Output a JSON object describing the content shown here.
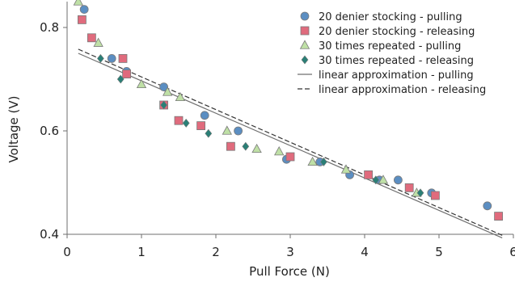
{
  "chart_data": {
    "type": "scatter",
    "xlabel": "Pull Force (N)",
    "ylabel": "Voltage (V)",
    "xlim": [
      0,
      6
    ],
    "ylim": [
      0.4,
      0.85
    ],
    "xticks": [
      "0",
      "1",
      "2",
      "3",
      "4",
      "5",
      "6"
    ],
    "yticks": [
      "0.4",
      "0.6",
      "0.8"
    ],
    "ytick_values": [
      0.4,
      0.6,
      0.8
    ],
    "grid": false,
    "legend_position": "top-right",
    "series": [
      {
        "name": "20 denier stocking - pulling",
        "marker": "circle",
        "color": "#5b8ec2",
        "points": [
          [
            0.23,
            0.835
          ],
          [
            0.6,
            0.74
          ],
          [
            0.8,
            0.715
          ],
          [
            1.3,
            0.685
          ],
          [
            1.85,
            0.63
          ],
          [
            2.3,
            0.6
          ],
          [
            2.95,
            0.545
          ],
          [
            3.4,
            0.54
          ],
          [
            3.8,
            0.515
          ],
          [
            4.2,
            0.505
          ],
          [
            4.45,
            0.505
          ],
          [
            4.9,
            0.48
          ],
          [
            5.65,
            0.455
          ]
        ]
      },
      {
        "name": "20 denier stocking - releasing",
        "marker": "square",
        "color": "#e06b7d",
        "points": [
          [
            0.2,
            0.815
          ],
          [
            0.33,
            0.78
          ],
          [
            0.75,
            0.74
          ],
          [
            0.8,
            0.71
          ],
          [
            1.3,
            0.65
          ],
          [
            1.5,
            0.62
          ],
          [
            1.8,
            0.61
          ],
          [
            2.2,
            0.57
          ],
          [
            3.0,
            0.55
          ],
          [
            4.05,
            0.515
          ],
          [
            4.6,
            0.49
          ],
          [
            4.95,
            0.475
          ],
          [
            5.8,
            0.435
          ]
        ]
      },
      {
        "name": "30 times repeated - pulling",
        "marker": "triangle",
        "color": "#bfe0a6",
        "points": [
          [
            0.15,
            0.85
          ],
          [
            0.42,
            0.77
          ],
          [
            1.0,
            0.69
          ],
          [
            1.35,
            0.675
          ],
          [
            1.52,
            0.665
          ],
          [
            2.15,
            0.6
          ],
          [
            2.55,
            0.565
          ],
          [
            2.85,
            0.56
          ],
          [
            3.3,
            0.54
          ],
          [
            3.75,
            0.525
          ],
          [
            4.25,
            0.505
          ],
          [
            4.7,
            0.48
          ]
        ]
      },
      {
        "name": "30 times repeated - releasing",
        "marker": "diamond",
        "color": "#2a7f76",
        "points": [
          [
            0.45,
            0.74
          ],
          [
            0.72,
            0.7
          ],
          [
            1.3,
            0.65
          ],
          [
            1.6,
            0.615
          ],
          [
            1.9,
            0.595
          ],
          [
            2.4,
            0.57
          ],
          [
            3.45,
            0.54
          ],
          [
            4.15,
            0.505
          ],
          [
            4.75,
            0.48
          ]
        ]
      },
      {
        "name": "linear approximation - pulling",
        "type": "line",
        "color": "#6f6f6f",
        "dash": "solid",
        "points": [
          [
            0.15,
            0.75
          ],
          [
            5.85,
            0.393
          ]
        ]
      },
      {
        "name": "linear approximation - releasing",
        "type": "line",
        "color": "#333333",
        "dash": "dashed",
        "points": [
          [
            0.15,
            0.758
          ],
          [
            5.85,
            0.398
          ]
        ]
      }
    ]
  }
}
